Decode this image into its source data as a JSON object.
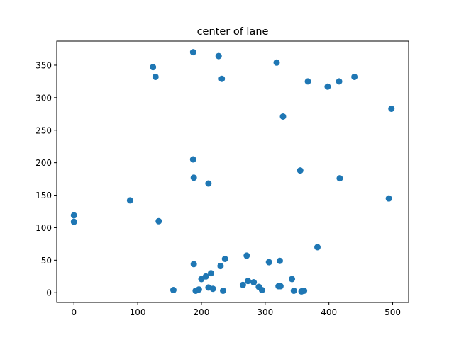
{
  "chart_data": {
    "type": "scatter",
    "title": "center of lane",
    "xlabel": "",
    "ylabel": "",
    "xlim": [
      -27,
      525
    ],
    "ylim": [
      -15,
      387
    ],
    "xticks": [
      0,
      100,
      200,
      300,
      400,
      500
    ],
    "yticks": [
      0,
      50,
      100,
      150,
      200,
      250,
      300,
      350
    ],
    "grid": false,
    "color": "#1f77b4",
    "points": [
      {
        "x": 0,
        "y": 119
      },
      {
        "x": 0,
        "y": 109
      },
      {
        "x": 88,
        "y": 142
      },
      {
        "x": 124,
        "y": 347
      },
      {
        "x": 128,
        "y": 332
      },
      {
        "x": 133,
        "y": 110
      },
      {
        "x": 156,
        "y": 4
      },
      {
        "x": 187,
        "y": 370
      },
      {
        "x": 187,
        "y": 205
      },
      {
        "x": 188,
        "y": 177
      },
      {
        "x": 188,
        "y": 44
      },
      {
        "x": 191,
        "y": 3
      },
      {
        "x": 196,
        "y": 5
      },
      {
        "x": 200,
        "y": 21
      },
      {
        "x": 207,
        "y": 25
      },
      {
        "x": 211,
        "y": 168
      },
      {
        "x": 211,
        "y": 8
      },
      {
        "x": 215,
        "y": 30
      },
      {
        "x": 218,
        "y": 6
      },
      {
        "x": 227,
        "y": 364
      },
      {
        "x": 230,
        "y": 41
      },
      {
        "x": 232,
        "y": 329
      },
      {
        "x": 234,
        "y": 3
      },
      {
        "x": 237,
        "y": 52
      },
      {
        "x": 265,
        "y": 12
      },
      {
        "x": 271,
        "y": 57
      },
      {
        "x": 273,
        "y": 18
      },
      {
        "x": 282,
        "y": 16
      },
      {
        "x": 290,
        "y": 9
      },
      {
        "x": 295,
        "y": 4
      },
      {
        "x": 306,
        "y": 47
      },
      {
        "x": 318,
        "y": 354
      },
      {
        "x": 321,
        "y": 10
      },
      {
        "x": 324,
        "y": 10
      },
      {
        "x": 323,
        "y": 49
      },
      {
        "x": 328,
        "y": 271
      },
      {
        "x": 342,
        "y": 21
      },
      {
        "x": 345,
        "y": 3
      },
      {
        "x": 355,
        "y": 188
      },
      {
        "x": 357,
        "y": 2
      },
      {
        "x": 361,
        "y": 3
      },
      {
        "x": 367,
        "y": 325
      },
      {
        "x": 382,
        "y": 70
      },
      {
        "x": 398,
        "y": 317
      },
      {
        "x": 416,
        "y": 325
      },
      {
        "x": 417,
        "y": 176
      },
      {
        "x": 440,
        "y": 332
      },
      {
        "x": 494,
        "y": 145
      },
      {
        "x": 498,
        "y": 283
      }
    ]
  }
}
